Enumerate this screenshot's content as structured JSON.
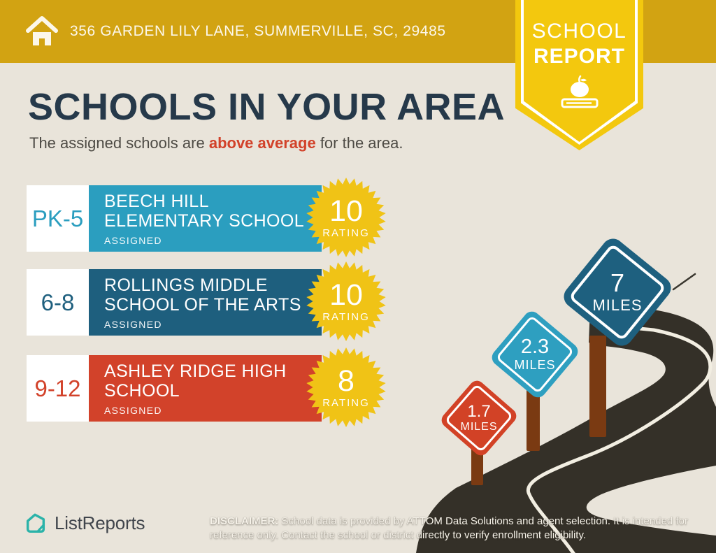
{
  "header": {
    "address": "356 GARDEN LILY LANE, SUMMERVILLE, SC, 29485"
  },
  "badge": {
    "line1": "SCHOOL",
    "line2": "REPORT"
  },
  "main": {
    "title": "SCHOOLS IN YOUR AREA",
    "subtitle_prefix": "The assigned schools are ",
    "subtitle_highlight": "above average",
    "subtitle_suffix": " for the area."
  },
  "schools": [
    {
      "grades": "PK-5",
      "name_lines": [
        "BEECH HILL",
        "ELEMENTARY SCHOOL"
      ],
      "tag": "ASSIGNED",
      "rating": "10",
      "rating_label": "RATING",
      "color": "#2B9EBF"
    },
    {
      "grades": "6-8",
      "name_lines": [
        "ROLLINGS MIDDLE",
        "SCHOOL OF THE ARTS"
      ],
      "tag": "ASSIGNED",
      "rating": "10",
      "rating_label": "RATING",
      "color": "#1E5F7E"
    },
    {
      "grades": "9-12",
      "name_lines": [
        "ASHLEY RIDGE HIGH",
        "SCHOOL"
      ],
      "tag": "ASSIGNED",
      "rating": "8",
      "rating_label": "RATING",
      "color": "#D2422A"
    }
  ],
  "signs": [
    {
      "distance": "1.7",
      "unit": "MILES",
      "color": "#D24226"
    },
    {
      "distance": "2.3",
      "unit": "MILES",
      "color": "#2E9FC0"
    },
    {
      "distance": "7",
      "unit": "MILES",
      "color": "#1E607F"
    }
  ],
  "footer": {
    "brand": "ListReports",
    "disclaimer_label": "DISCLAIMER:",
    "disclaimer_text": " School data is provided by ATTOM Data Solutions and agent selection. It is intended for reference only. Contact the school or district directly to verify enrollment eligibility."
  },
  "colors": {
    "banner_gold": "#D2A312",
    "badge_yellow": "#F3C80E",
    "starburst_yellow": "#F0C316",
    "elementary_blue": "#2B9EBF",
    "middle_blue": "#1E5F7E",
    "high_red": "#D2422A",
    "background_beige": "#E9E4DA",
    "road_dark": "#343028",
    "post_brown": "#7A3A12",
    "title_navy": "#26394A",
    "highlight_red": "#D2422A",
    "brand_teal": "#2BB3A9"
  }
}
